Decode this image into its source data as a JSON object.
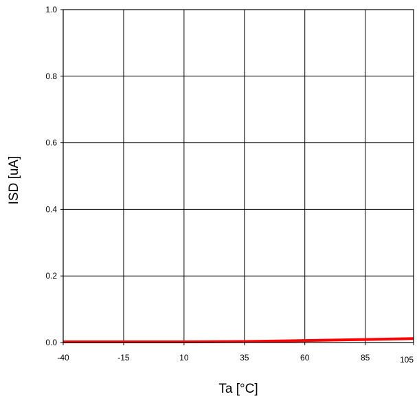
{
  "chart_data": {
    "type": "line",
    "title": "",
    "xlabel": "Ta [°C]",
    "ylabel": "ISD  [uA]",
    "xlim": [
      -40,
      105
    ],
    "ylim": [
      0.0,
      1.0
    ],
    "x_ticks": [
      -40,
      -15,
      10,
      35,
      60,
      85,
      105
    ],
    "x_tick_labels": [
      "-40",
      "-15",
      "10",
      "35",
      "60",
      "85",
      "105"
    ],
    "y_ticks": [
      0.0,
      0.2,
      0.4,
      0.6,
      0.8,
      1.0
    ],
    "y_tick_labels": [
      "0.0",
      "0.2",
      "0.4",
      "0.6",
      "0.8",
      "1.0"
    ],
    "grid": true,
    "legend": "none",
    "series": [
      {
        "color": "#ff0000",
        "x": [
          -40,
          -15,
          10,
          35,
          60,
          85,
          105
        ],
        "y": [
          0.002,
          0.002,
          0.002,
          0.003,
          0.006,
          0.009,
          0.012
        ]
      }
    ]
  }
}
